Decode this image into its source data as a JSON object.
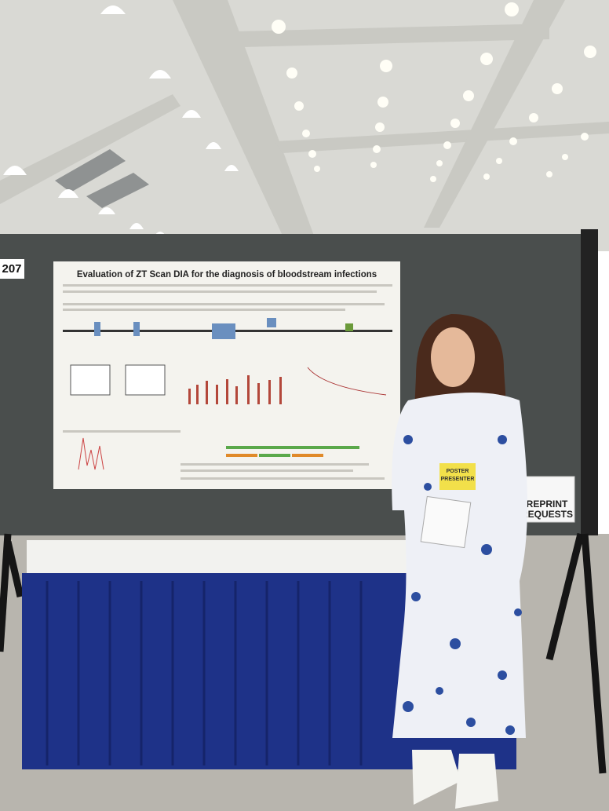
{
  "board_number": "207",
  "poster": {
    "title": "Evaluation of ZT Scan DIA for the diagnosis of bloodstream infections"
  },
  "badge": {
    "ribbon": [
      "POSTER",
      "PRESENTER"
    ]
  },
  "sign": {
    "lines": [
      "REPRINT",
      "REQUESTS"
    ]
  }
}
